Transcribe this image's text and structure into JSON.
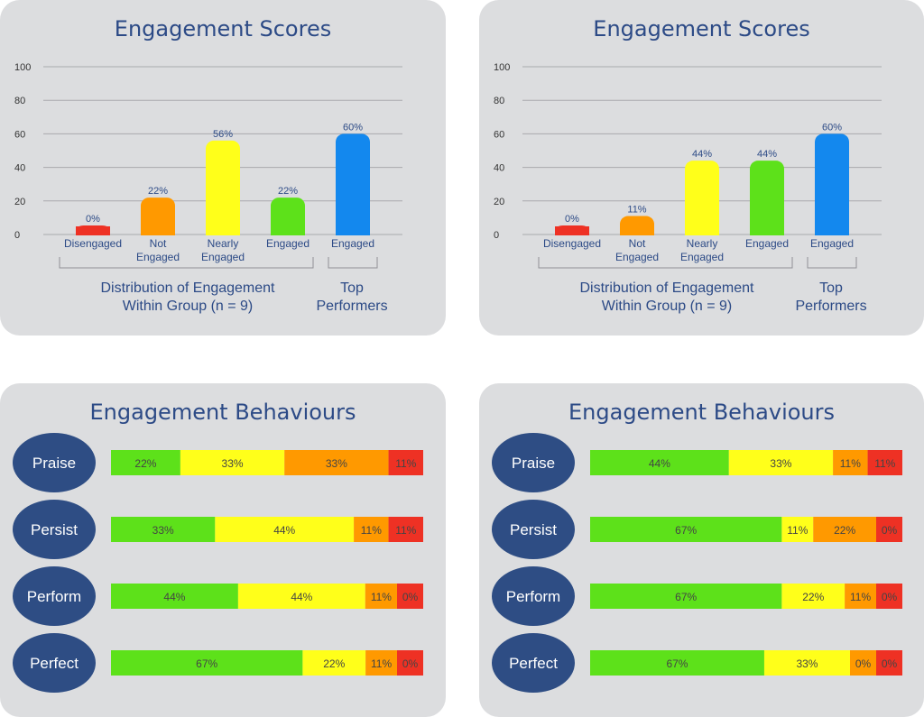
{
  "chart_data": [
    {
      "type": "bar",
      "title": "Engagement Scores",
      "ylim": [
        0,
        100
      ],
      "yticks": [
        0,
        20,
        40,
        60,
        80,
        100
      ],
      "grid": true,
      "categories": [
        "Disengaged",
        "Not Engaged",
        "Nearly Engaged",
        "Engaged",
        "Engaged"
      ],
      "values": [
        0,
        22,
        56,
        22,
        60
      ],
      "value_labels": [
        "0%",
        "22%",
        "56%",
        "22%",
        "60%"
      ],
      "colors": [
        "#ee3124",
        "#ff9900",
        "#ffff1a",
        "#5de11a",
        "#1388ee"
      ],
      "groups": [
        {
          "label": "Distribution of Engagement Within Group (n = 9)",
          "categories": [
            0,
            1,
            2,
            3
          ]
        },
        {
          "label": "Top Performers",
          "categories": [
            4
          ]
        }
      ]
    },
    {
      "type": "bar",
      "title": "Engagement Scores",
      "ylim": [
        0,
        100
      ],
      "yticks": [
        0,
        20,
        40,
        60,
        80,
        100
      ],
      "grid": true,
      "categories": [
        "Disengaged",
        "Not Engaged",
        "Nearly Engaged",
        "Engaged",
        "Engaged"
      ],
      "values": [
        0,
        11,
        44,
        44,
        60
      ],
      "value_labels": [
        "0%",
        "11%",
        "44%",
        "44%",
        "60%"
      ],
      "colors": [
        "#ee3124",
        "#ff9900",
        "#ffff1a",
        "#5de11a",
        "#1388ee"
      ],
      "groups": [
        {
          "label": "Distribution of Engagement Within Group (n = 9)",
          "categories": [
            0,
            1,
            2,
            3
          ]
        },
        {
          "label": "Top Performers",
          "categories": [
            4
          ]
        }
      ]
    },
    {
      "type": "bar",
      "orientation": "horizontal-stacked",
      "title": "Engagement Behaviours",
      "categories": [
        "Praise",
        "Persist",
        "Perform",
        "Perfect"
      ],
      "segment_colors": [
        "#5de11a",
        "#ffff1a",
        "#ff9900",
        "#ee3124"
      ],
      "rows": [
        {
          "values": [
            22,
            33,
            33,
            11
          ],
          "labels": [
            "22%",
            "33%",
            "33%",
            "11%"
          ]
        },
        {
          "values": [
            33,
            44,
            11,
            11
          ],
          "labels": [
            "33%",
            "44%",
            "11%",
            "11%"
          ]
        },
        {
          "values": [
            44,
            44,
            11,
            0
          ],
          "labels": [
            "44%",
            "44%",
            "11%",
            "0%"
          ]
        },
        {
          "values": [
            67,
            22,
            11,
            0
          ],
          "labels": [
            "67%",
            "22%",
            "11%",
            "0%"
          ]
        }
      ]
    },
    {
      "type": "bar",
      "orientation": "horizontal-stacked",
      "title": "Engagement Behaviours",
      "categories": [
        "Praise",
        "Persist",
        "Perform",
        "Perfect"
      ],
      "segment_colors": [
        "#5de11a",
        "#ffff1a",
        "#ff9900",
        "#ee3124"
      ],
      "rows": [
        {
          "values": [
            44,
            33,
            11,
            11
          ],
          "labels": [
            "44%",
            "33%",
            "11%",
            "11%"
          ]
        },
        {
          "values": [
            67,
            11,
            22,
            0
          ],
          "labels": [
            "67%",
            "11%",
            "22%",
            "0%"
          ]
        },
        {
          "values": [
            67,
            22,
            11,
            0
          ],
          "labels": [
            "67%",
            "22%",
            "11%",
            "0%"
          ]
        },
        {
          "values": [
            67,
            33,
            0,
            0
          ],
          "labels": [
            "67%",
            "33%",
            "0%",
            "0%"
          ]
        }
      ]
    }
  ],
  "style": {
    "pill_color": "#2e4d84",
    "title_color": "#2c4a86"
  }
}
